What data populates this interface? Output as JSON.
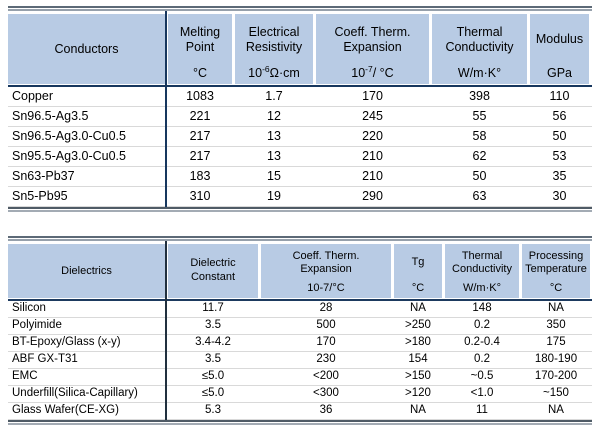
{
  "colors": {
    "header_fill": "#b8cbe4",
    "divider_navy": "#17375e",
    "rule_gray": "#5d6a77",
    "row_line": "#d9d9d9"
  },
  "chart_data": [
    {
      "type": "table",
      "title": "Conductors",
      "legend_position": "none",
      "columns": [
        {
          "label": "Melting Point",
          "unit_base": "",
          "unit_sup": "",
          "unit_rest": "°C"
        },
        {
          "label": "Electrical Resistivity",
          "unit_base": "10",
          "unit_sup": "-6",
          "unit_rest": "Ω·cm"
        },
        {
          "label": "Coeff. Therm. Expansion",
          "unit_base": "10",
          "unit_sup": "-7",
          "unit_rest": "/ °C"
        },
        {
          "label": "Thermal Conductivity",
          "unit_base": "",
          "unit_sup": "",
          "unit_rest": "W/m·K°"
        },
        {
          "label": "Modulus",
          "unit_base": "",
          "unit_sup": "",
          "unit_rest": "GPa"
        }
      ],
      "rows": [
        {
          "name": "Copper",
          "values": [
            "1083",
            "1.7",
            "170",
            "398",
            "110"
          ]
        },
        {
          "name": "Sn96.5-Ag3.5",
          "values": [
            "221",
            "12",
            "245",
            "55",
            "56"
          ]
        },
        {
          "name": "Sn96.5-Ag3.0-Cu0.5",
          "values": [
            "217",
            "13",
            "220",
            "58",
            "50"
          ]
        },
        {
          "name": "Sn95.5-Ag3.0-Cu0.5",
          "values": [
            "217",
            "13",
            "210",
            "62",
            "53"
          ]
        },
        {
          "name": "Sn63-Pb37",
          "values": [
            "183",
            "15",
            "210",
            "50",
            "35"
          ]
        },
        {
          "name": "Sn5-Pb95",
          "values": [
            "310",
            "19",
            "290",
            "63",
            "30"
          ]
        }
      ]
    },
    {
      "type": "table",
      "title": "Dielectrics",
      "legend_position": "none",
      "columns": [
        {
          "label": "Dielectric Constant",
          "unit_base": "",
          "unit_sup": "",
          "unit_rest": ""
        },
        {
          "label": "Coeff. Therm. Expansion",
          "unit_base": "",
          "unit_sup": "",
          "unit_rest": "10-7/°C"
        },
        {
          "label": "Tg",
          "unit_base": "",
          "unit_sup": "",
          "unit_rest": "°C"
        },
        {
          "label": "Thermal Conductivity",
          "unit_base": "",
          "unit_sup": "",
          "unit_rest": "W/m·K°"
        },
        {
          "label": "Processing Temperature",
          "unit_base": "",
          "unit_sup": "",
          "unit_rest": "°C"
        }
      ],
      "rows": [
        {
          "name": "Silicon",
          "values": [
            "11.7",
            "28",
            "NA",
            "148",
            "NA"
          ]
        },
        {
          "name": "Polyimide",
          "values": [
            "3.5",
            "500",
            ">250",
            "0.2",
            "350"
          ]
        },
        {
          "name": "BT-Epoxy/Glass (x-y)",
          "values": [
            "3.4-4.2",
            "170",
            ">180",
            "0.2-0.4",
            "175"
          ]
        },
        {
          "name": "ABF GX-T31",
          "values": [
            "3.5",
            "230",
            "154",
            "0.2",
            "180-190"
          ]
        },
        {
          "name": "EMC",
          "values": [
            "≤5.0",
            "<200",
            ">150",
            "~0.5",
            "170-200"
          ]
        },
        {
          "name": "Underfill(Silica-Capillary)",
          "values": [
            "≤5.0",
            "<300",
            ">120",
            "<1.0",
            "~150"
          ]
        },
        {
          "name": "Glass Wafer(CE-XG)",
          "values": [
            "5.3",
            "36",
            "NA",
            "11",
            "NA"
          ]
        }
      ]
    }
  ]
}
